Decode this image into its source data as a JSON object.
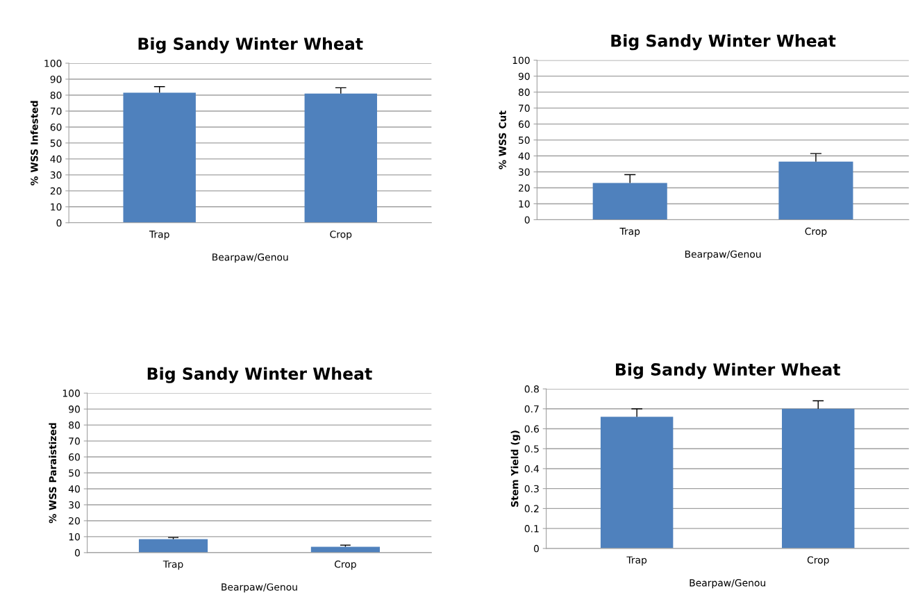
{
  "chart_data": [
    {
      "type": "bar",
      "title": "Big Sandy Winter Wheat",
      "ylabel": "% WSS Infested",
      "xlabel": "Bearpaw/Genou",
      "categories": [
        "Trap",
        "Crop"
      ],
      "values": [
        81.5,
        81
      ],
      "errors": [
        [
          81.5,
          85.3
        ],
        [
          81,
          84.6
        ]
      ],
      "color": "#4f81bd",
      "ylim": [
        0,
        100
      ],
      "yticks": [
        0,
        10,
        20,
        30,
        40,
        50,
        60,
        70,
        80,
        90,
        100
      ],
      "grid": "y",
      "legend": false
    },
    {
      "type": "bar",
      "title": "Big Sandy Winter Wheat",
      "ylabel": "% WSS Cut",
      "xlabel": "Bearpaw/Genou",
      "categories": [
        "Trap",
        "Crop"
      ],
      "values": [
        23.1,
        36.4
      ],
      "errors": [
        [
          23.1,
          28.3
        ],
        [
          36.4,
          41.5
        ]
      ],
      "color": "#4f81bd",
      "ylim": [
        0,
        100
      ],
      "yticks": [
        0,
        10,
        20,
        30,
        40,
        50,
        60,
        70,
        80,
        90,
        100
      ],
      "grid": "y",
      "legend": false
    },
    {
      "type": "bar",
      "title": "Big Sandy Winter Wheat",
      "ylabel": "% WSS Paraistized",
      "xlabel": "Bearpaw/Genou",
      "categories": [
        "Trap",
        "Crop"
      ],
      "values": [
        8.5,
        3.7
      ],
      "errors": [
        [
          8.5,
          9.5
        ],
        [
          3.7,
          4.7
        ]
      ],
      "color": "#4f81bd",
      "ylim": [
        0,
        100
      ],
      "yticks": [
        0,
        10,
        20,
        30,
        40,
        50,
        60,
        70,
        80,
        90,
        100
      ],
      "grid": "y",
      "legend": false
    },
    {
      "type": "bar",
      "title": "Big Sandy Winter Wheat",
      "ylabel": "Stem Yield (g)",
      "xlabel": "Bearpaw/Genou",
      "categories": [
        "Trap",
        "Crop"
      ],
      "values": [
        0.66,
        0.7
      ],
      "errors": [
        [
          0.66,
          0.7
        ],
        [
          0.7,
          0.74
        ]
      ],
      "color": "#4f81bd",
      "ylim": [
        0,
        0.8
      ],
      "yticks": [
        0,
        0.1,
        0.2,
        0.3,
        0.4,
        0.5,
        0.6,
        0.7,
        0.8
      ],
      "grid": "y",
      "legend": false
    }
  ]
}
